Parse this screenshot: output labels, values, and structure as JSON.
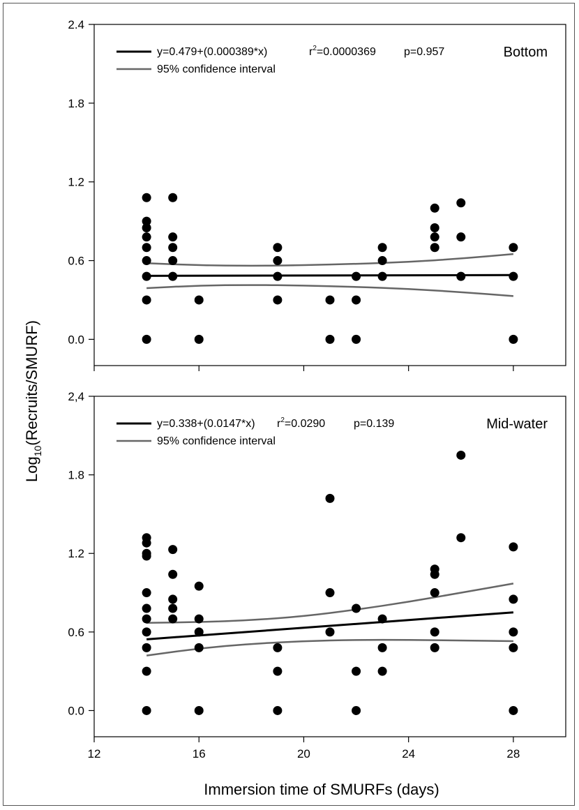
{
  "chart_data": [
    {
      "type": "scatter",
      "panel_label": "Bottom",
      "xlim": [
        12,
        30
      ],
      "ylim": [
        -0.2,
        2.4
      ],
      "y_tick_labels": [
        "0.0",
        "0.6",
        "1.2",
        "1.8",
        "2.4"
      ],
      "y_ticks": [
        0.0,
        0.6,
        1.2,
        1.8,
        2.4
      ],
      "x_ticks": [
        12,
        16,
        20,
        24,
        28
      ],
      "points": [
        [
          14,
          1.08
        ],
        [
          14,
          0.9
        ],
        [
          14,
          0.85
        ],
        [
          14,
          0.78
        ],
        [
          14,
          0.7
        ],
        [
          14,
          0.6
        ],
        [
          14,
          0.48
        ],
        [
          14,
          0.3
        ],
        [
          14,
          0.0
        ],
        [
          15,
          1.08
        ],
        [
          15,
          0.78
        ],
        [
          15,
          0.7
        ],
        [
          15,
          0.6
        ],
        [
          15,
          0.48
        ],
        [
          16,
          0.3
        ],
        [
          16,
          0.0
        ],
        [
          19,
          0.7
        ],
        [
          19,
          0.6
        ],
        [
          19,
          0.48
        ],
        [
          19,
          0.3
        ],
        [
          21,
          0.3
        ],
        [
          21,
          0.0
        ],
        [
          22,
          0.48
        ],
        [
          22,
          0.3
        ],
        [
          22,
          0.0
        ],
        [
          23,
          0.7
        ],
        [
          23,
          0.6
        ],
        [
          23,
          0.48
        ],
        [
          25,
          1.0
        ],
        [
          25,
          0.85
        ],
        [
          25,
          0.78
        ],
        [
          25,
          0.7
        ],
        [
          26,
          1.04
        ],
        [
          26,
          0.78
        ],
        [
          26,
          0.48
        ],
        [
          28,
          0.7
        ],
        [
          28,
          0.48
        ],
        [
          28,
          0.0
        ]
      ],
      "fit": {
        "x": [
          14,
          28
        ],
        "y": [
          0.484,
          0.49
        ]
      },
      "ci_upper": {
        "x": [
          14,
          16,
          18,
          20,
          22,
          24,
          26,
          28
        ],
        "y": [
          0.58,
          0.565,
          0.56,
          0.565,
          0.575,
          0.59,
          0.615,
          0.65
        ]
      },
      "ci_lower": {
        "x": [
          14,
          16,
          18,
          20,
          22,
          24,
          26,
          28
        ],
        "y": [
          0.39,
          0.41,
          0.415,
          0.41,
          0.4,
          0.385,
          0.36,
          0.33
        ]
      },
      "legend": {
        "fit_label": "y=0.479+(0.000389*x)",
        "r2_label": "=0.0000369",
        "p_label": "p=0.957",
        "ci_label": "95% confidence interval"
      }
    },
    {
      "type": "scatter",
      "panel_label": "Mid-water",
      "xlim": [
        12,
        30
      ],
      "ylim": [
        -0.2,
        2.4
      ],
      "y_tick_labels": [
        "0.0",
        "0.6",
        "1.2",
        "1.8",
        "2,4"
      ],
      "y_ticks": [
        0.0,
        0.6,
        1.2,
        1.8,
        2.4
      ],
      "x_ticks": [
        12,
        16,
        20,
        24,
        28
      ],
      "x_tick_labels": [
        "12",
        "16",
        "20",
        "24",
        "28"
      ],
      "points": [
        [
          14,
          1.32
        ],
        [
          14,
          1.28
        ],
        [
          14,
          1.2
        ],
        [
          14,
          1.18
        ],
        [
          14,
          0.9
        ],
        [
          14,
          0.78
        ],
        [
          14,
          0.7
        ],
        [
          14,
          0.6
        ],
        [
          14,
          0.48
        ],
        [
          14,
          0.3
        ],
        [
          14,
          0.0
        ],
        [
          15,
          1.23
        ],
        [
          15,
          1.04
        ],
        [
          15,
          0.85
        ],
        [
          15,
          0.78
        ],
        [
          15,
          0.7
        ],
        [
          16,
          0.95
        ],
        [
          16,
          0.7
        ],
        [
          16,
          0.6
        ],
        [
          16,
          0.48
        ],
        [
          16,
          0.0
        ],
        [
          19,
          0.48
        ],
        [
          19,
          0.3
        ],
        [
          19,
          0.0
        ],
        [
          21,
          1.62
        ],
        [
          21,
          0.9
        ],
        [
          21,
          0.6
        ],
        [
          22,
          0.78
        ],
        [
          22,
          0.3
        ],
        [
          22,
          0.0
        ],
        [
          23,
          0.7
        ],
        [
          23,
          0.48
        ],
        [
          23,
          0.3
        ],
        [
          25,
          1.08
        ],
        [
          25,
          1.04
        ],
        [
          25,
          0.9
        ],
        [
          25,
          0.6
        ],
        [
          25,
          0.48
        ],
        [
          26,
          1.95
        ],
        [
          26,
          1.32
        ],
        [
          28,
          1.25
        ],
        [
          28,
          0.85
        ],
        [
          28,
          0.6
        ],
        [
          28,
          0.48
        ],
        [
          28,
          0.0
        ]
      ],
      "fit": {
        "x": [
          14,
          28
        ],
        "y": [
          0.544,
          0.75
        ]
      },
      "ci_upper": {
        "x": [
          14,
          16,
          18,
          20,
          22,
          24,
          26,
          28
        ],
        "y": [
          0.67,
          0.675,
          0.69,
          0.72,
          0.77,
          0.83,
          0.9,
          0.97
        ]
      },
      "ci_lower": {
        "x": [
          14,
          16,
          18,
          20,
          22,
          24,
          26,
          28
        ],
        "y": [
          0.42,
          0.475,
          0.51,
          0.53,
          0.54,
          0.54,
          0.535,
          0.53
        ]
      },
      "legend": {
        "fit_label": "y=0.338+(0.0147*x)",
        "r2_label": "=0.0290",
        "p_label": "p=0.139",
        "ci_label": "95% confidence interval"
      }
    }
  ],
  "axes": {
    "ylabel_prefix": "Log",
    "ylabel_subscript": "10",
    "ylabel_rest": "(Recruits/SMURF)",
    "xlabel": "Immersion time of SMURFs (days)"
  },
  "legend_r2_prefix": "r",
  "legend_r2_sup": "2",
  "colors": {
    "points": "#000000",
    "fit": "#000000",
    "ci": "#666666",
    "axis": "#000000"
  }
}
